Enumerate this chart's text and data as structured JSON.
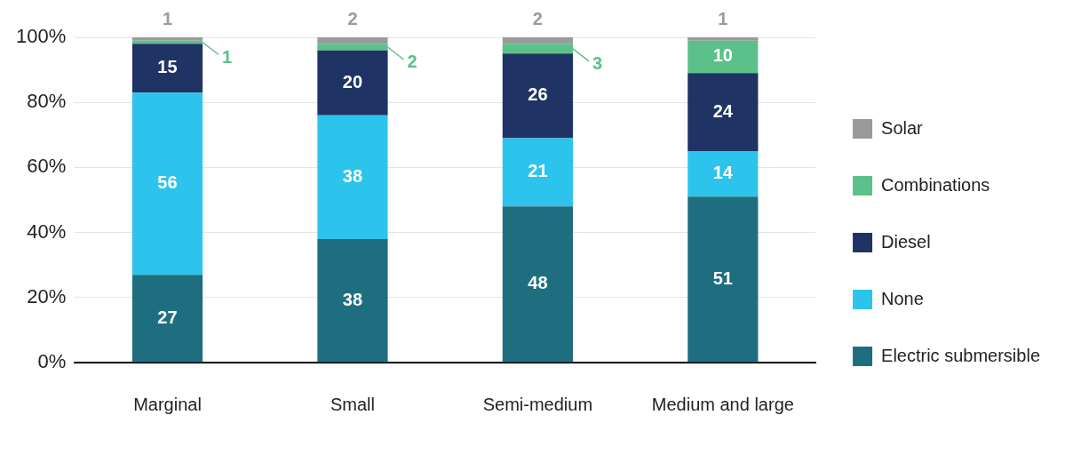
{
  "chart_data": {
    "type": "bar",
    "stacked": true,
    "categories": [
      "Marginal",
      "Small",
      "Semi-medium",
      "Medium and large"
    ],
    "series": [
      {
        "name": "Electric submersible",
        "color": "#1e6e80",
        "values": [
          27,
          38,
          48,
          51
        ]
      },
      {
        "name": "None",
        "color": "#2cc4ec",
        "values": [
          56,
          38,
          21,
          14
        ]
      },
      {
        "name": "Diesel",
        "color": "#1f3464",
        "values": [
          15,
          20,
          26,
          24
        ]
      },
      {
        "name": "Combinations",
        "color": "#5cc08a",
        "values": [
          1,
          2,
          3,
          10
        ]
      },
      {
        "name": "Solar",
        "color": "#9a9a9a",
        "values": [
          1,
          2,
          2,
          1
        ]
      }
    ],
    "ylim": [
      0,
      100
    ],
    "yticks": [
      {
        "value": 0,
        "label": "0%"
      },
      {
        "value": 20,
        "label": "20%"
      },
      {
        "value": 40,
        "label": "40%"
      },
      {
        "value": 60,
        "label": "60%"
      },
      {
        "value": 80,
        "label": "80%"
      },
      {
        "value": 100,
        "label": "100%"
      }
    ],
    "grid": "y",
    "legend": "right",
    "data_labels": true
  }
}
